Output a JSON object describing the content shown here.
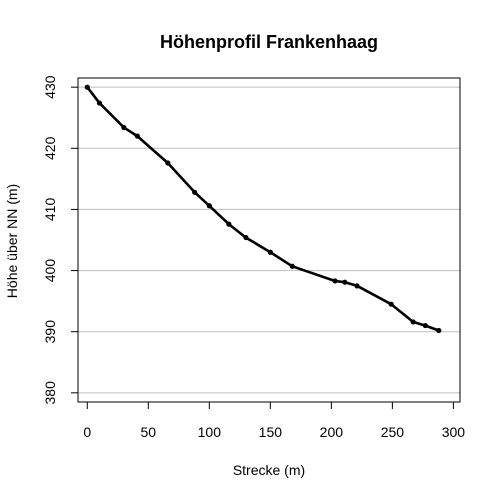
{
  "chart_data": {
    "type": "line",
    "title": "Höhenprofil Frankenhaag",
    "xlabel": "Strecke (m)",
    "ylabel": "Höhe über NN (m)",
    "xlim": [
      0,
      300
    ],
    "ylim": [
      380,
      430
    ],
    "x_ticks": [
      0,
      50,
      100,
      150,
      200,
      250,
      300
    ],
    "y_ticks": [
      380,
      390,
      400,
      410,
      420,
      430
    ],
    "grid": "horizontal",
    "legend": "none",
    "line_color": "#000000",
    "grid_color": "#bebebe",
    "x": [
      0,
      10,
      30,
      41,
      66,
      88,
      100,
      116,
      130,
      150,
      168,
      203,
      211,
      221,
      249,
      267,
      277,
      288
    ],
    "y": [
      430.0,
      427.4,
      423.4,
      422.0,
      417.6,
      412.8,
      410.6,
      407.6,
      405.4,
      403.0,
      400.7,
      398.3,
      398.1,
      397.5,
      394.5,
      391.6,
      391.0,
      390.2
    ]
  }
}
